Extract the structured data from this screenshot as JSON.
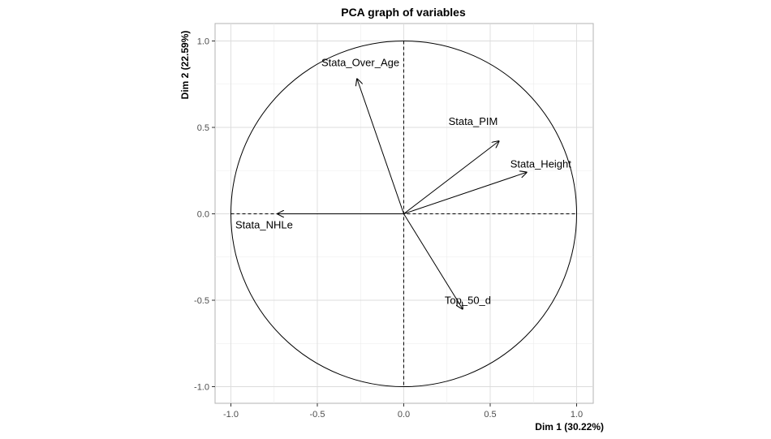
{
  "chart_data": {
    "type": "scatter",
    "title": "PCA graph of variables",
    "xlabel": "Dim 1 (30.22%)",
    "ylabel": "Dim 2 (22.59%)",
    "xlim": [
      -1.0,
      1.0
    ],
    "ylim": [
      -1.0,
      1.0
    ],
    "x_ticks": [
      -1.0,
      -0.5,
      0.0,
      0.5,
      1.0
    ],
    "x_tick_labels": [
      "-1.0",
      "-0.5",
      "0.0",
      "0.5",
      "1.0"
    ],
    "y_ticks": [
      -1.0,
      -0.5,
      0.0,
      0.5,
      1.0
    ],
    "y_tick_labels": [
      "-1.0",
      "-0.5",
      "0.0",
      "0.5",
      "1.0"
    ],
    "grid": true,
    "correlation_circle": true,
    "variables": [
      {
        "name": "Stata_Over_Age",
        "x": -0.27,
        "y": 0.78
      },
      {
        "name": "Stata_PIM",
        "x": 0.55,
        "y": 0.42
      },
      {
        "name": "Stata_Height",
        "x": 0.71,
        "y": 0.24
      },
      {
        "name": "Stata_NHLe",
        "x": -0.73,
        "y": 0.0
      },
      {
        "name": "Top_50_d",
        "x": 0.34,
        "y": -0.55
      }
    ]
  }
}
